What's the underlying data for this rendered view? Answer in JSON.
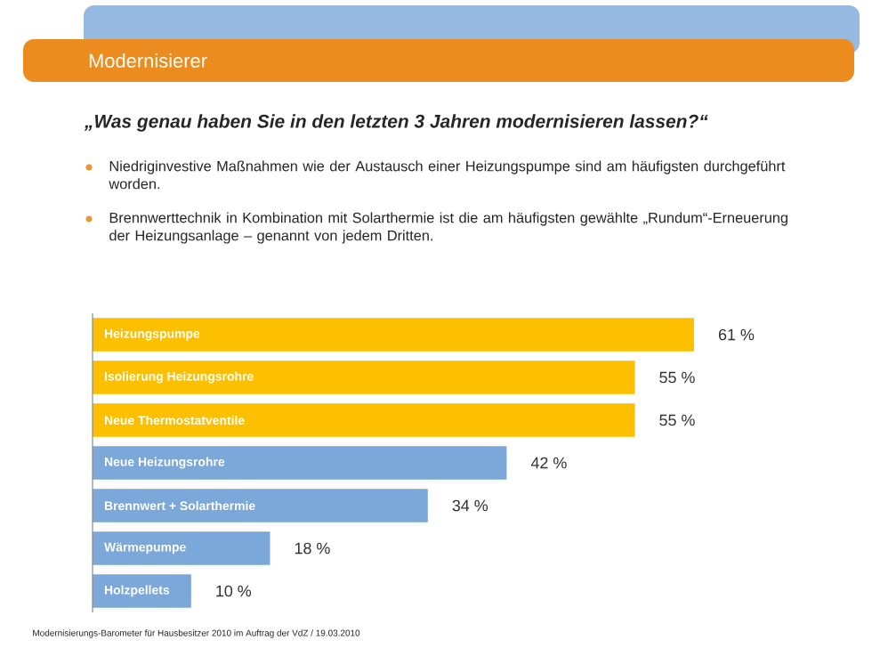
{
  "chart_data": {
    "type": "bar",
    "orientation": "horizontal",
    "title": "Modernisierer",
    "subtitle": "„Was genau haben Sie in den letzten 3 Jahren modernisieren lassen?“",
    "annotations": [
      "Niedriginvestive Maßnahmen wie der Austausch einer Heizungspumpe sind am häufigsten durchgeführt worden.",
      "Brennwerttechnik in Kombination mit Solarthermie ist die am häufigsten gewählte „Rundum“-Erneuerung der Heizungsanlage – genannt von jedem Dritten.",
      "Modernisierungs-Barometer für Hausbesitzer 2010 im Auftrag der VdZ / 19.03.2010"
    ],
    "categories": [
      "Heizungspumpe",
      "Isolierung Heizungsrohre",
      "Neue Thermostatventile",
      "Neue Heizungsrohre",
      "Brennwert + Solarthermie",
      "Wärmepumpe",
      "Holzpellets"
    ],
    "values": [
      61,
      55,
      55,
      42,
      34,
      18,
      10
    ],
    "colors": [
      "#fcc000",
      "#fcc000",
      "#fcc000",
      "#7ba7d9",
      "#7ba7d9",
      "#7ba7d9",
      "#7ba7d9"
    ],
    "value_labels": [
      "61 %",
      "55 %",
      "55 %",
      "42 %",
      "34 %",
      "18 %",
      "10 %"
    ]
  }
}
